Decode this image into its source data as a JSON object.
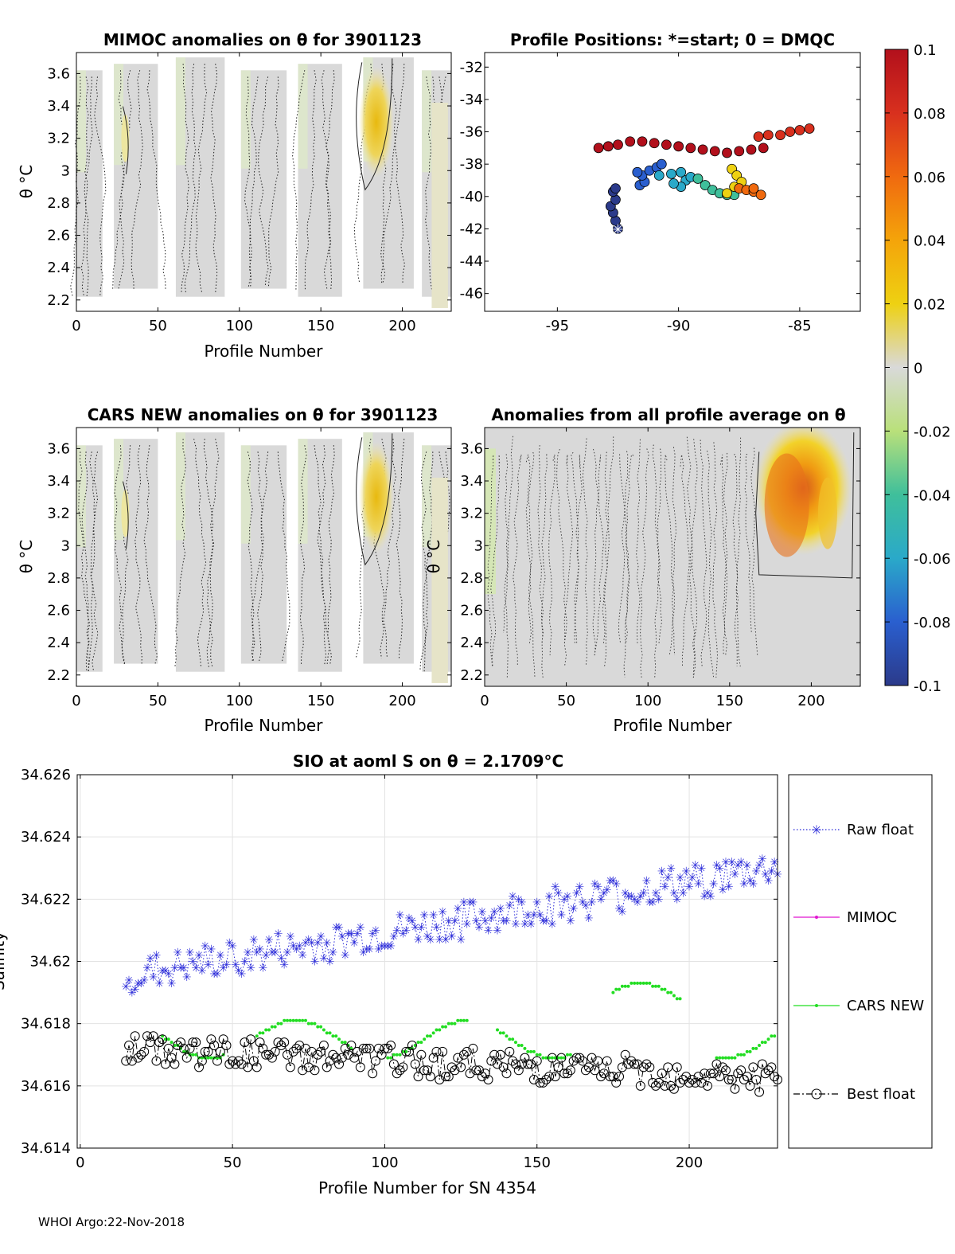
{
  "footer": "WHOI Argo:22-Nov-2018",
  "colorbar": {
    "ticks": [
      "0.1",
      "0.08",
      "0.06",
      "0.04",
      "0.02",
      "0",
      "-0.02",
      "-0.04",
      "-0.06",
      "-0.08",
      "-0.1"
    ],
    "colors": [
      "#b2101c",
      "#d8301e",
      "#f06a0f",
      "#f4a40a",
      "#eed112",
      "#d9d9d9",
      "#b9e07a",
      "#3fbf9b",
      "#2aa9c9",
      "#2a5fcf",
      "#2b3a8a"
    ]
  },
  "chart_data": [
    {
      "id": "mimoc",
      "type": "heatmap",
      "title": "MIMOC anomalies on θ  for 3901123",
      "xlabel": "Profile Number",
      "ylabel": "θ °C",
      "xticks": [
        "0",
        "50",
        "100",
        "150",
        "200"
      ],
      "yticks": [
        "3.6",
        "3.4",
        "3.2",
        "3",
        "2.8",
        "2.6",
        "2.4",
        "2.2"
      ],
      "xlim": [
        0,
        230
      ],
      "ylim": [
        2.13,
        3.73
      ],
      "gaps": [
        [
          16,
          23
        ],
        [
          50,
          61
        ],
        [
          91,
          101
        ],
        [
          129,
          136
        ],
        [
          163,
          176
        ],
        [
          207,
          212
        ]
      ],
      "hot_spot": {
        "x": 184,
        "y": 3.35,
        "value": 0.035
      }
    },
    {
      "id": "positions",
      "type": "scatter",
      "title": "Profile Positions: *=start; 0 = DMQC",
      "xticks": [
        "-95",
        "-90",
        "-85"
      ],
      "yticks": [
        "-32",
        "-34",
        "-36",
        "-38",
        "-40",
        "-42",
        "-44",
        "-46"
      ],
      "xlim": [
        -98,
        -82.5
      ],
      "ylim": [
        -47.1,
        -31.1
      ]
    },
    {
      "id": "cars",
      "type": "heatmap",
      "title": "CARS NEW anomalies on θ for 3901123",
      "xlabel": "Profile Number",
      "ylabel": "θ °C",
      "xticks": [
        "0",
        "50",
        "100",
        "150",
        "200"
      ],
      "yticks": [
        "3.6",
        "3.4",
        "3.2",
        "3",
        "2.8",
        "2.6",
        "2.4",
        "2.2"
      ],
      "xlim": [
        0,
        230
      ],
      "ylim": [
        2.13,
        3.73
      ]
    },
    {
      "id": "allavg",
      "type": "heatmap",
      "title": "Anomalies from all profile average on θ",
      "xlabel": "Profile Number",
      "ylabel": "θ °C",
      "xticks": [
        "0",
        "50",
        "100",
        "150",
        "200"
      ],
      "yticks": [
        "3.6",
        "3.4",
        "3.2",
        "3",
        "2.8",
        "2.6",
        "2.4",
        "2.2"
      ],
      "xlim": [
        0,
        230
      ],
      "ylim": [
        2.13,
        3.73
      ]
    },
    {
      "id": "salinity",
      "type": "line",
      "title": "SIO at aoml S on θ = 2.1709°C",
      "xlabel": "Profile Number for SN 4354",
      "ylabel": "Salinity",
      "xticks": [
        "0",
        "50",
        "100",
        "150",
        "200"
      ],
      "yticks": [
        "34.626",
        "34.624",
        "34.622",
        "34.62",
        "34.618",
        "34.616",
        "34.614"
      ],
      "xlim": [
        -1,
        229
      ],
      "ylim": [
        34.614,
        34.626
      ],
      "legend": [
        "Raw float",
        "MIMOC",
        "CARS NEW",
        "Best float"
      ]
    }
  ]
}
